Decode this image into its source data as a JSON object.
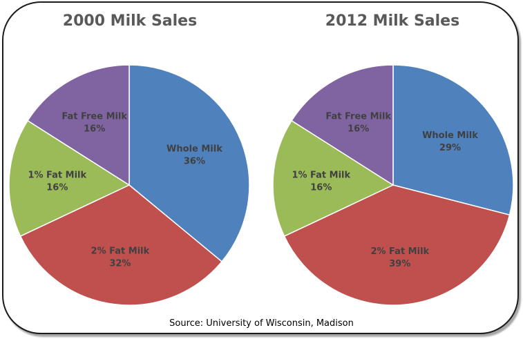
{
  "chart_data": [
    {
      "type": "pie",
      "title": "2000 Milk Sales",
      "categories": [
        "Whole Milk",
        "2% Fat Milk",
        "1% Fat Milk",
        "Fat Free Milk"
      ],
      "values": [
        36,
        32,
        16,
        16
      ],
      "labels": [
        "36%",
        "32%",
        "16%",
        "16%"
      ],
      "colors": [
        "#4f81bd",
        "#c0504d",
        "#9bbb59",
        "#8064a2"
      ]
    },
    {
      "type": "pie",
      "title": "2012 Milk Sales",
      "categories": [
        "Whole Milk",
        "2% Fat Milk",
        "1% Fat Milk",
        "Fat Free Milk"
      ],
      "values": [
        29,
        39,
        16,
        16
      ],
      "labels": [
        "29%",
        "39%",
        "16%",
        "16%"
      ],
      "colors": [
        "#4f81bd",
        "#c0504d",
        "#9bbb59",
        "#8064a2"
      ]
    }
  ],
  "source": "Source:  University of Wisconsin, Madison"
}
